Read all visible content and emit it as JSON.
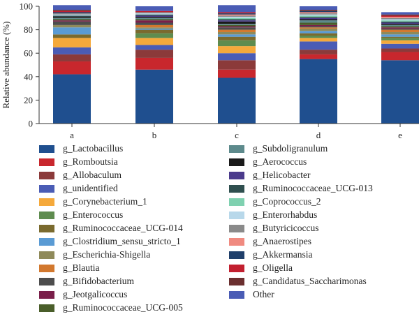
{
  "chart_data": {
    "type": "bar",
    "stacked": true,
    "ylabel": "Relative abundance (%)",
    "xlabel": "",
    "ylim": [
      0,
      100
    ],
    "yticks": [
      0,
      20,
      40,
      60,
      80,
      100
    ],
    "categories": [
      "a",
      "b",
      "c",
      "d",
      "e"
    ],
    "legend_position": "bottom",
    "series": [
      {
        "name": "g_Lactobacillus",
        "color": "#1f4f8f",
        "values": [
          42,
          46,
          39,
          55,
          54
        ]
      },
      {
        "name": "g_Romboutsia",
        "color": "#c8272d",
        "values": [
          11,
          10,
          7,
          4,
          7
        ]
      },
      {
        "name": "g_Allobaculum",
        "color": "#8b3a3a",
        "values": [
          6,
          7,
          8,
          4,
          3
        ]
      },
      {
        "name": "g_unidentified",
        "color": "#4a5cb5",
        "values": [
          6,
          4,
          6,
          7,
          4
        ]
      },
      {
        "name": "g_Corynebacterium_1",
        "color": "#f5a93b",
        "values": [
          8,
          6,
          6,
          3,
          3
        ]
      },
      {
        "name": "g_Enterococcus",
        "color": "#5e8c4f",
        "values": [
          0,
          4,
          5,
          2,
          2
        ]
      },
      {
        "name": "g_Ruminococcaceae_UCG-014",
        "color": "#7a6a2e",
        "values": [
          3,
          3,
          3,
          2,
          1
        ]
      },
      {
        "name": "g_Clostridium_sensu_stricto_1",
        "color": "#5a9bd4",
        "values": [
          6,
          1,
          2,
          2,
          2
        ]
      },
      {
        "name": "g_Escherichia-Shigella",
        "color": "#8f8a5a",
        "values": [
          2,
          1,
          2,
          2,
          2
        ]
      },
      {
        "name": "g_Blautia",
        "color": "#d2782e",
        "values": [
          0,
          2,
          2,
          1,
          2
        ]
      },
      {
        "name": "g_Bifidobacterium",
        "color": "#4d4d4d",
        "values": [
          3,
          2,
          2,
          1,
          1
        ]
      },
      {
        "name": "g_Jeotgalicoccus",
        "color": "#7a1f4a",
        "values": [
          1,
          2,
          1,
          1,
          1
        ]
      },
      {
        "name": "g_Ruminococcaceae_UCG-005",
        "color": "#4a5e2a",
        "values": [
          1,
          1,
          1,
          2,
          1
        ]
      },
      {
        "name": "g_Subdoligranulum",
        "color": "#5d8a8c",
        "values": [
          1,
          1,
          1,
          2,
          1
        ]
      },
      {
        "name": "g_Aerococcus",
        "color": "#1a1a1a",
        "values": [
          1,
          1,
          2,
          1,
          1
        ]
      },
      {
        "name": "g_Helicobacter",
        "color": "#4b3b8c",
        "values": [
          0,
          1,
          1,
          1,
          1
        ]
      },
      {
        "name": "g_Ruminococcaceae_UCG-013",
        "color": "#2f4f4f",
        "values": [
          1,
          1,
          1,
          1,
          1
        ]
      },
      {
        "name": "g_Coprococcus_2",
        "color": "#7fd1b0",
        "values": [
          0,
          0,
          1,
          1,
          1
        ]
      },
      {
        "name": "g_Enterorhabdus",
        "color": "#b8d8ea",
        "values": [
          1,
          1,
          1,
          1,
          1
        ]
      },
      {
        "name": "g_Butyricicoccus",
        "color": "#8a8a8a",
        "values": [
          1,
          1,
          1,
          1,
          1
        ]
      },
      {
        "name": "g_Anaerostipes",
        "color": "#f08a80",
        "values": [
          0,
          0,
          1,
          1,
          1
        ]
      },
      {
        "name": "g_Akkermansia",
        "color": "#1f3f6a",
        "values": [
          1,
          0,
          1,
          1,
          0
        ]
      },
      {
        "name": "g_Oligella",
        "color": "#c21f2f",
        "values": [
          1,
          1,
          1,
          0,
          1
        ]
      },
      {
        "name": "g_Candidatus_Saccharimonas",
        "color": "#6b2f2f",
        "values": [
          1,
          0,
          0,
          1,
          1
        ]
      },
      {
        "name": "Other",
        "color": "#4a5cb5",
        "values": [
          4,
          4,
          6,
          3,
          2
        ]
      }
    ]
  }
}
